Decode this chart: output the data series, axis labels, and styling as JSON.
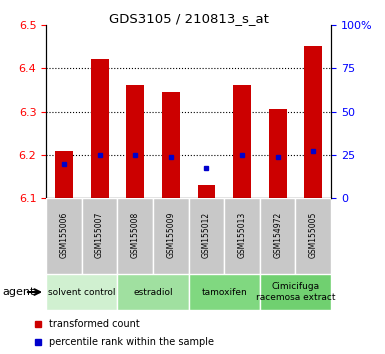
{
  "title": "GDS3105 / 210813_s_at",
  "samples": [
    "GSM155006",
    "GSM155007",
    "GSM155008",
    "GSM155009",
    "GSM155012",
    "GSM155013",
    "GSM154972",
    "GSM155005"
  ],
  "bar_tops": [
    6.21,
    6.42,
    6.36,
    6.345,
    6.13,
    6.36,
    6.305,
    6.45
  ],
  "bar_base": 6.1,
  "blue_y": [
    6.18,
    6.2,
    6.2,
    6.195,
    6.17,
    6.2,
    6.195,
    6.21
  ],
  "ylim_left": [
    6.1,
    6.5
  ],
  "ylim_right": [
    0,
    100
  ],
  "yticks_left": [
    6.1,
    6.2,
    6.3,
    6.4,
    6.5
  ],
  "yticks_right": [
    0,
    25,
    50,
    75,
    100
  ],
  "bar_color": "#cc0000",
  "blue_color": "#0000cc",
  "agent_groups": [
    {
      "label": "solvent control",
      "span": [
        0,
        2
      ],
      "color": "#d0f0d0"
    },
    {
      "label": "estradiol",
      "span": [
        2,
        4
      ],
      "color": "#a0e0a0"
    },
    {
      "label": "tamoxifen",
      "span": [
        4,
        6
      ],
      "color": "#80d880"
    },
    {
      "label": "Cimicifuga\nracemosa extract",
      "span": [
        6,
        8
      ],
      "color": "#70d070"
    }
  ],
  "agent_label": "agent",
  "legend_items": [
    {
      "color": "#cc0000",
      "label": "transformed count"
    },
    {
      "color": "#0000cc",
      "label": "percentile rank within the sample"
    }
  ],
  "bar_width": 0.5,
  "sample_bg": "#c8c8c8",
  "grid_yticks": [
    6.2,
    6.3,
    6.4
  ]
}
